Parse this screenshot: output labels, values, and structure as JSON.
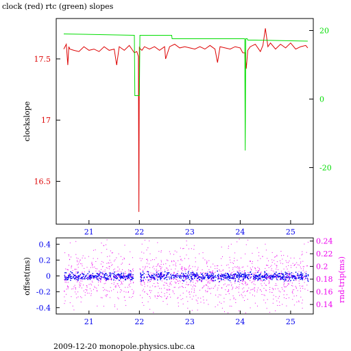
{
  "page": {
    "title": "clock (red) rtc (green) slopes",
    "footer": "2009-12-20 monopole.physics.ubc.ca"
  },
  "colors": {
    "clock": "#dd0000",
    "rtc": "#00dd00",
    "offset": "#0000ee",
    "rtt": "#ee00ee",
    "axis": "#000000",
    "left_ticks_top": "#dd0000",
    "right_ticks_top": "#00dd00",
    "ticks_bottom": "#0000ee",
    "right_ticks_bottom": "#ee00ee"
  },
  "chart_data": [
    {
      "type": "line",
      "ylabel": "clockslope",
      "xlim": [
        20.35,
        25.45
      ],
      "ylim": [
        16.15,
        17.83
      ],
      "y2lim": [
        -36.5,
        23.5
      ],
      "x_ticks": [
        "21",
        "22",
        "23",
        "24",
        "25"
      ],
      "y_ticks": [
        "16.5",
        "17",
        "17.5"
      ],
      "y2_ticks": [
        "-20",
        "0",
        "20"
      ],
      "series": [
        {
          "name": "clock",
          "axis": "left",
          "x": [
            20.5,
            20.55,
            20.58,
            20.6,
            20.62,
            20.7,
            20.8,
            20.9,
            21.0,
            21.1,
            21.2,
            21.3,
            21.4,
            21.5,
            21.55,
            21.6,
            21.7,
            21.8,
            21.85,
            21.9,
            21.95,
            21.98,
            21.99,
            22.0,
            22.02,
            22.05,
            22.1,
            22.2,
            22.3,
            22.4,
            22.5,
            22.52,
            22.6,
            22.7,
            22.8,
            22.9,
            23.0,
            23.1,
            23.2,
            23.3,
            23.4,
            23.5,
            23.55,
            23.6,
            23.7,
            23.8,
            23.9,
            24.0,
            24.05,
            24.1,
            24.12,
            24.15,
            24.2,
            24.3,
            24.4,
            24.45,
            24.5,
            24.55,
            24.6,
            24.7,
            24.8,
            24.9,
            25.0,
            25.1,
            25.2,
            25.3,
            25.34
          ],
          "y": [
            17.58,
            17.62,
            17.45,
            17.6,
            17.58,
            17.57,
            17.56,
            17.6,
            17.57,
            17.58,
            17.56,
            17.6,
            17.57,
            17.58,
            17.45,
            17.6,
            17.57,
            17.61,
            17.58,
            17.55,
            17.56,
            17.52,
            16.25,
            17.6,
            17.58,
            17.57,
            17.6,
            17.58,
            17.6,
            17.57,
            17.6,
            17.5,
            17.6,
            17.62,
            17.59,
            17.6,
            17.59,
            17.58,
            17.6,
            17.58,
            17.61,
            17.58,
            17.47,
            17.6,
            17.59,
            17.58,
            17.6,
            17.59,
            17.55,
            17.55,
            17.42,
            17.57,
            17.6,
            17.62,
            17.56,
            17.61,
            17.75,
            17.6,
            17.63,
            17.58,
            17.62,
            17.59,
            17.63,
            17.58,
            17.6,
            17.61,
            17.59
          ]
        },
        {
          "name": "rtc",
          "axis": "right",
          "x": [
            20.5,
            21.9,
            21.91,
            22.0,
            22.01,
            22.64,
            22.65,
            23.8,
            24.09,
            24.1,
            24.11,
            24.14,
            24.15,
            24.3,
            25.34
          ],
          "y": [
            19.0,
            18.6,
            1.0,
            1.0,
            18.6,
            18.6,
            17.6,
            17.6,
            17.6,
            -15.0,
            17.6,
            17.6,
            17.2,
            17.2,
            16.9
          ]
        }
      ]
    },
    {
      "type": "scatter",
      "ylabel": "offset(ms)",
      "y2label": "rnd-trip(ms)",
      "xlim": [
        20.35,
        25.45
      ],
      "ylim": [
        -0.48,
        0.48
      ],
      "y2lim": [
        0.125,
        0.245
      ],
      "x_ticks": [
        "21",
        "22",
        "23",
        "24",
        "25"
      ],
      "y_ticks": [
        "0.4",
        "0.2",
        "0",
        "-0.2",
        "-0.4"
      ],
      "y2_ticks": [
        "0.24",
        "0.22",
        "0.2",
        "0.18",
        "0.16",
        "0.14"
      ],
      "series": [
        {
          "name": "offset",
          "axis": "left",
          "x_range": [
            20.5,
            25.34
          ],
          "gap": [
            21.88,
            22.0
          ],
          "center": 0.0,
          "spread": 0.025
        },
        {
          "name": "rtt",
          "axis": "right",
          "x_range": [
            20.5,
            25.34
          ],
          "gap": [
            21.88,
            22.0
          ],
          "center": 0.183,
          "spread": 0.025
        }
      ]
    }
  ]
}
